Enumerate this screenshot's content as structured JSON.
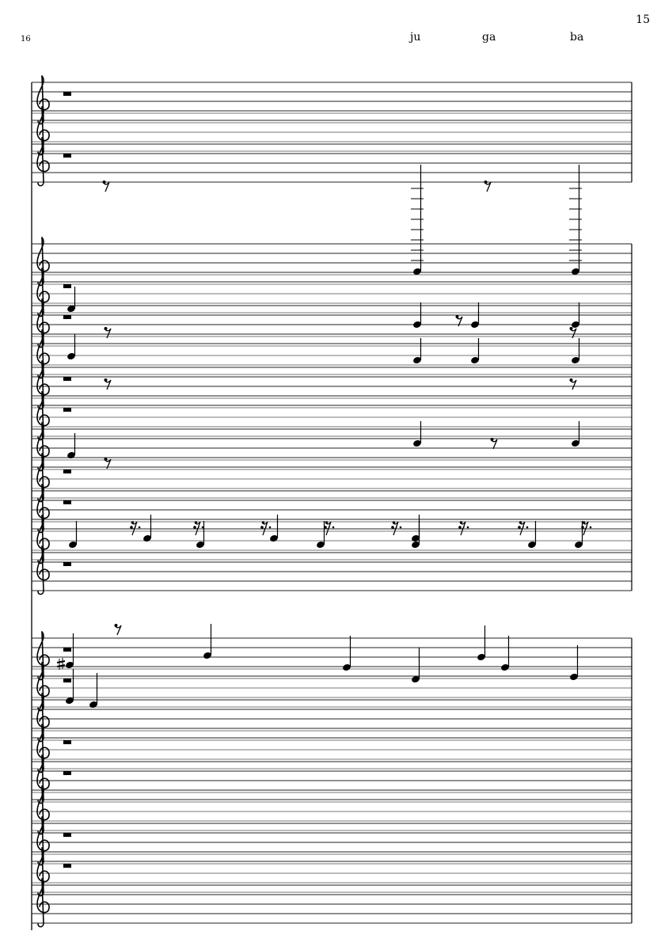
{
  "page_number": "15",
  "measure_number": "16",
  "lyrics": [
    "ju",
    "ga",
    "ba"
  ],
  "score": {
    "clef": "treble",
    "staff_groups": [
      3,
      11,
      9
    ]
  }
}
